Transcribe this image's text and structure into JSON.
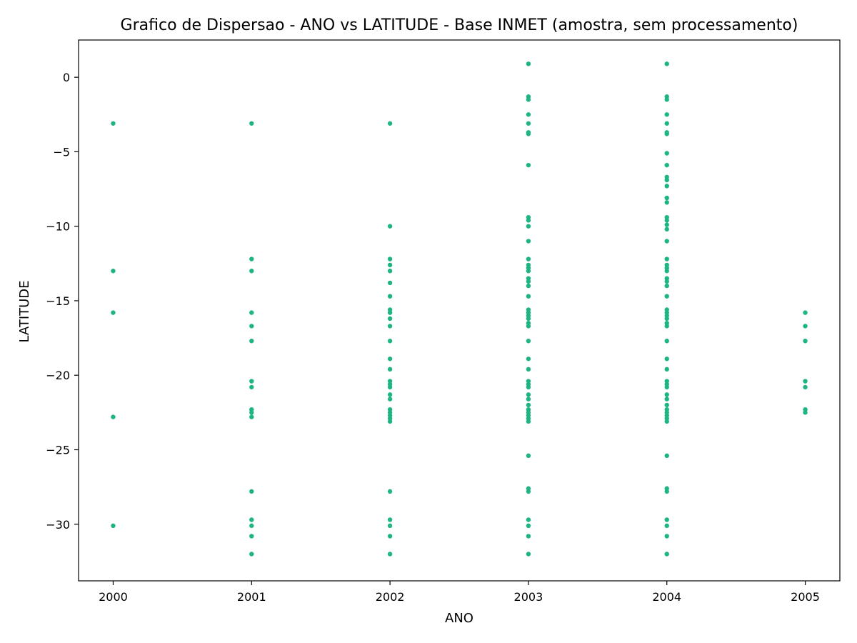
{
  "chart_data": {
    "type": "scatter",
    "title": "Grafico de Dispersao - ANO vs LATITUDE - Base INMET (amostra, sem processamento)",
    "xlabel": "ANO",
    "ylabel": "LATITUDE",
    "xlim": [
      1999.75,
      2005.25
    ],
    "ylim": [
      -33.8,
      2.5
    ],
    "x_ticks": [
      2000,
      2001,
      2002,
      2003,
      2004,
      2005
    ],
    "x_tick_labels": [
      "2000",
      "2001",
      "2002",
      "2003",
      "2004",
      "2005"
    ],
    "y_ticks": [
      0,
      -5,
      -10,
      -15,
      -20,
      -25,
      -30
    ],
    "y_tick_labels": [
      "0",
      "−5",
      "−10",
      "−15",
      "−20",
      "−25",
      "−30"
    ],
    "grid": false,
    "marker_color": "#1db584",
    "series": [
      {
        "points": [
          [
            2000,
            -3.1
          ],
          [
            2000,
            -13.0
          ],
          [
            2000,
            -15.8
          ],
          [
            2000,
            -22.8
          ],
          [
            2000,
            -30.1
          ],
          [
            2001,
            -3.1
          ],
          [
            2001,
            -12.2
          ],
          [
            2001,
            -13.0
          ],
          [
            2001,
            -15.8
          ],
          [
            2001,
            -16.7
          ],
          [
            2001,
            -17.7
          ],
          [
            2001,
            -20.4
          ],
          [
            2001,
            -20.8
          ],
          [
            2001,
            -22.3
          ],
          [
            2001,
            -22.5
          ],
          [
            2001,
            -22.8
          ],
          [
            2001,
            -27.8
          ],
          [
            2001,
            -29.7
          ],
          [
            2001,
            -30.1
          ],
          [
            2001,
            -30.8
          ],
          [
            2001,
            -32.0
          ],
          [
            2002,
            -3.1
          ],
          [
            2002,
            -10.0
          ],
          [
            2002,
            -12.2
          ],
          [
            2002,
            -12.6
          ],
          [
            2002,
            -13.0
          ],
          [
            2002,
            -13.8
          ],
          [
            2002,
            -14.7
          ],
          [
            2002,
            -15.6
          ],
          [
            2002,
            -15.8
          ],
          [
            2002,
            -16.2
          ],
          [
            2002,
            -16.7
          ],
          [
            2002,
            -17.7
          ],
          [
            2002,
            -18.9
          ],
          [
            2002,
            -19.6
          ],
          [
            2002,
            -20.4
          ],
          [
            2002,
            -20.6
          ],
          [
            2002,
            -20.8
          ],
          [
            2002,
            -21.3
          ],
          [
            2002,
            -21.6
          ],
          [
            2002,
            -22.3
          ],
          [
            2002,
            -22.5
          ],
          [
            2002,
            -22.7
          ],
          [
            2002,
            -22.9
          ],
          [
            2002,
            -23.1
          ],
          [
            2002,
            -27.8
          ],
          [
            2002,
            -29.7
          ],
          [
            2002,
            -30.1
          ],
          [
            2002,
            -30.8
          ],
          [
            2002,
            -32.0
          ],
          [
            2003,
            0.9
          ],
          [
            2003,
            -1.3
          ],
          [
            2003,
            -1.5
          ],
          [
            2003,
            -2.5
          ],
          [
            2003,
            -3.1
          ],
          [
            2003,
            -3.7
          ],
          [
            2003,
            -3.8
          ],
          [
            2003,
            -5.9
          ],
          [
            2003,
            -9.4
          ],
          [
            2003,
            -9.6
          ],
          [
            2003,
            -10.0
          ],
          [
            2003,
            -11.0
          ],
          [
            2003,
            -12.2
          ],
          [
            2003,
            -12.6
          ],
          [
            2003,
            -12.8
          ],
          [
            2003,
            -13.0
          ],
          [
            2003,
            -13.5
          ],
          [
            2003,
            -13.7
          ],
          [
            2003,
            -14.0
          ],
          [
            2003,
            -14.7
          ],
          [
            2003,
            -15.6
          ],
          [
            2003,
            -15.8
          ],
          [
            2003,
            -16.0
          ],
          [
            2003,
            -16.2
          ],
          [
            2003,
            -16.5
          ],
          [
            2003,
            -16.7
          ],
          [
            2003,
            -17.7
          ],
          [
            2003,
            -18.9
          ],
          [
            2003,
            -19.6
          ],
          [
            2003,
            -20.4
          ],
          [
            2003,
            -20.6
          ],
          [
            2003,
            -20.8
          ],
          [
            2003,
            -21.3
          ],
          [
            2003,
            -21.6
          ],
          [
            2003,
            -22.0
          ],
          [
            2003,
            -22.3
          ],
          [
            2003,
            -22.5
          ],
          [
            2003,
            -22.7
          ],
          [
            2003,
            -22.9
          ],
          [
            2003,
            -23.1
          ],
          [
            2003,
            -25.4
          ],
          [
            2003,
            -27.6
          ],
          [
            2003,
            -27.8
          ],
          [
            2003,
            -29.7
          ],
          [
            2003,
            -30.1
          ],
          [
            2003,
            -30.8
          ],
          [
            2003,
            -32.0
          ],
          [
            2004,
            0.9
          ],
          [
            2004,
            -1.3
          ],
          [
            2004,
            -1.5
          ],
          [
            2004,
            -2.5
          ],
          [
            2004,
            -3.1
          ],
          [
            2004,
            -3.7
          ],
          [
            2004,
            -3.8
          ],
          [
            2004,
            -5.1
          ],
          [
            2004,
            -5.9
          ],
          [
            2004,
            -6.7
          ],
          [
            2004,
            -6.9
          ],
          [
            2004,
            -7.3
          ],
          [
            2004,
            -8.1
          ],
          [
            2004,
            -8.4
          ],
          [
            2004,
            -9.4
          ],
          [
            2004,
            -9.6
          ],
          [
            2004,
            -9.9
          ],
          [
            2004,
            -10.2
          ],
          [
            2004,
            -11.0
          ],
          [
            2004,
            -12.2
          ],
          [
            2004,
            -12.6
          ],
          [
            2004,
            -12.8
          ],
          [
            2004,
            -13.0
          ],
          [
            2004,
            -13.5
          ],
          [
            2004,
            -13.7
          ],
          [
            2004,
            -14.0
          ],
          [
            2004,
            -14.7
          ],
          [
            2004,
            -15.6
          ],
          [
            2004,
            -15.8
          ],
          [
            2004,
            -16.0
          ],
          [
            2004,
            -16.2
          ],
          [
            2004,
            -16.5
          ],
          [
            2004,
            -16.7
          ],
          [
            2004,
            -17.7
          ],
          [
            2004,
            -18.9
          ],
          [
            2004,
            -19.6
          ],
          [
            2004,
            -20.4
          ],
          [
            2004,
            -20.6
          ],
          [
            2004,
            -20.8
          ],
          [
            2004,
            -21.3
          ],
          [
            2004,
            -21.6
          ],
          [
            2004,
            -22.0
          ],
          [
            2004,
            -22.3
          ],
          [
            2004,
            -22.5
          ],
          [
            2004,
            -22.7
          ],
          [
            2004,
            -22.9
          ],
          [
            2004,
            -23.1
          ],
          [
            2004,
            -25.4
          ],
          [
            2004,
            -27.6
          ],
          [
            2004,
            -27.8
          ],
          [
            2004,
            -29.7
          ],
          [
            2004,
            -30.1
          ],
          [
            2004,
            -30.8
          ],
          [
            2004,
            -32.0
          ],
          [
            2005,
            -15.8
          ],
          [
            2005,
            -16.7
          ],
          [
            2005,
            -17.7
          ],
          [
            2005,
            -20.4
          ],
          [
            2005,
            -20.8
          ],
          [
            2005,
            -22.3
          ],
          [
            2005,
            -22.5
          ]
        ]
      }
    ]
  }
}
